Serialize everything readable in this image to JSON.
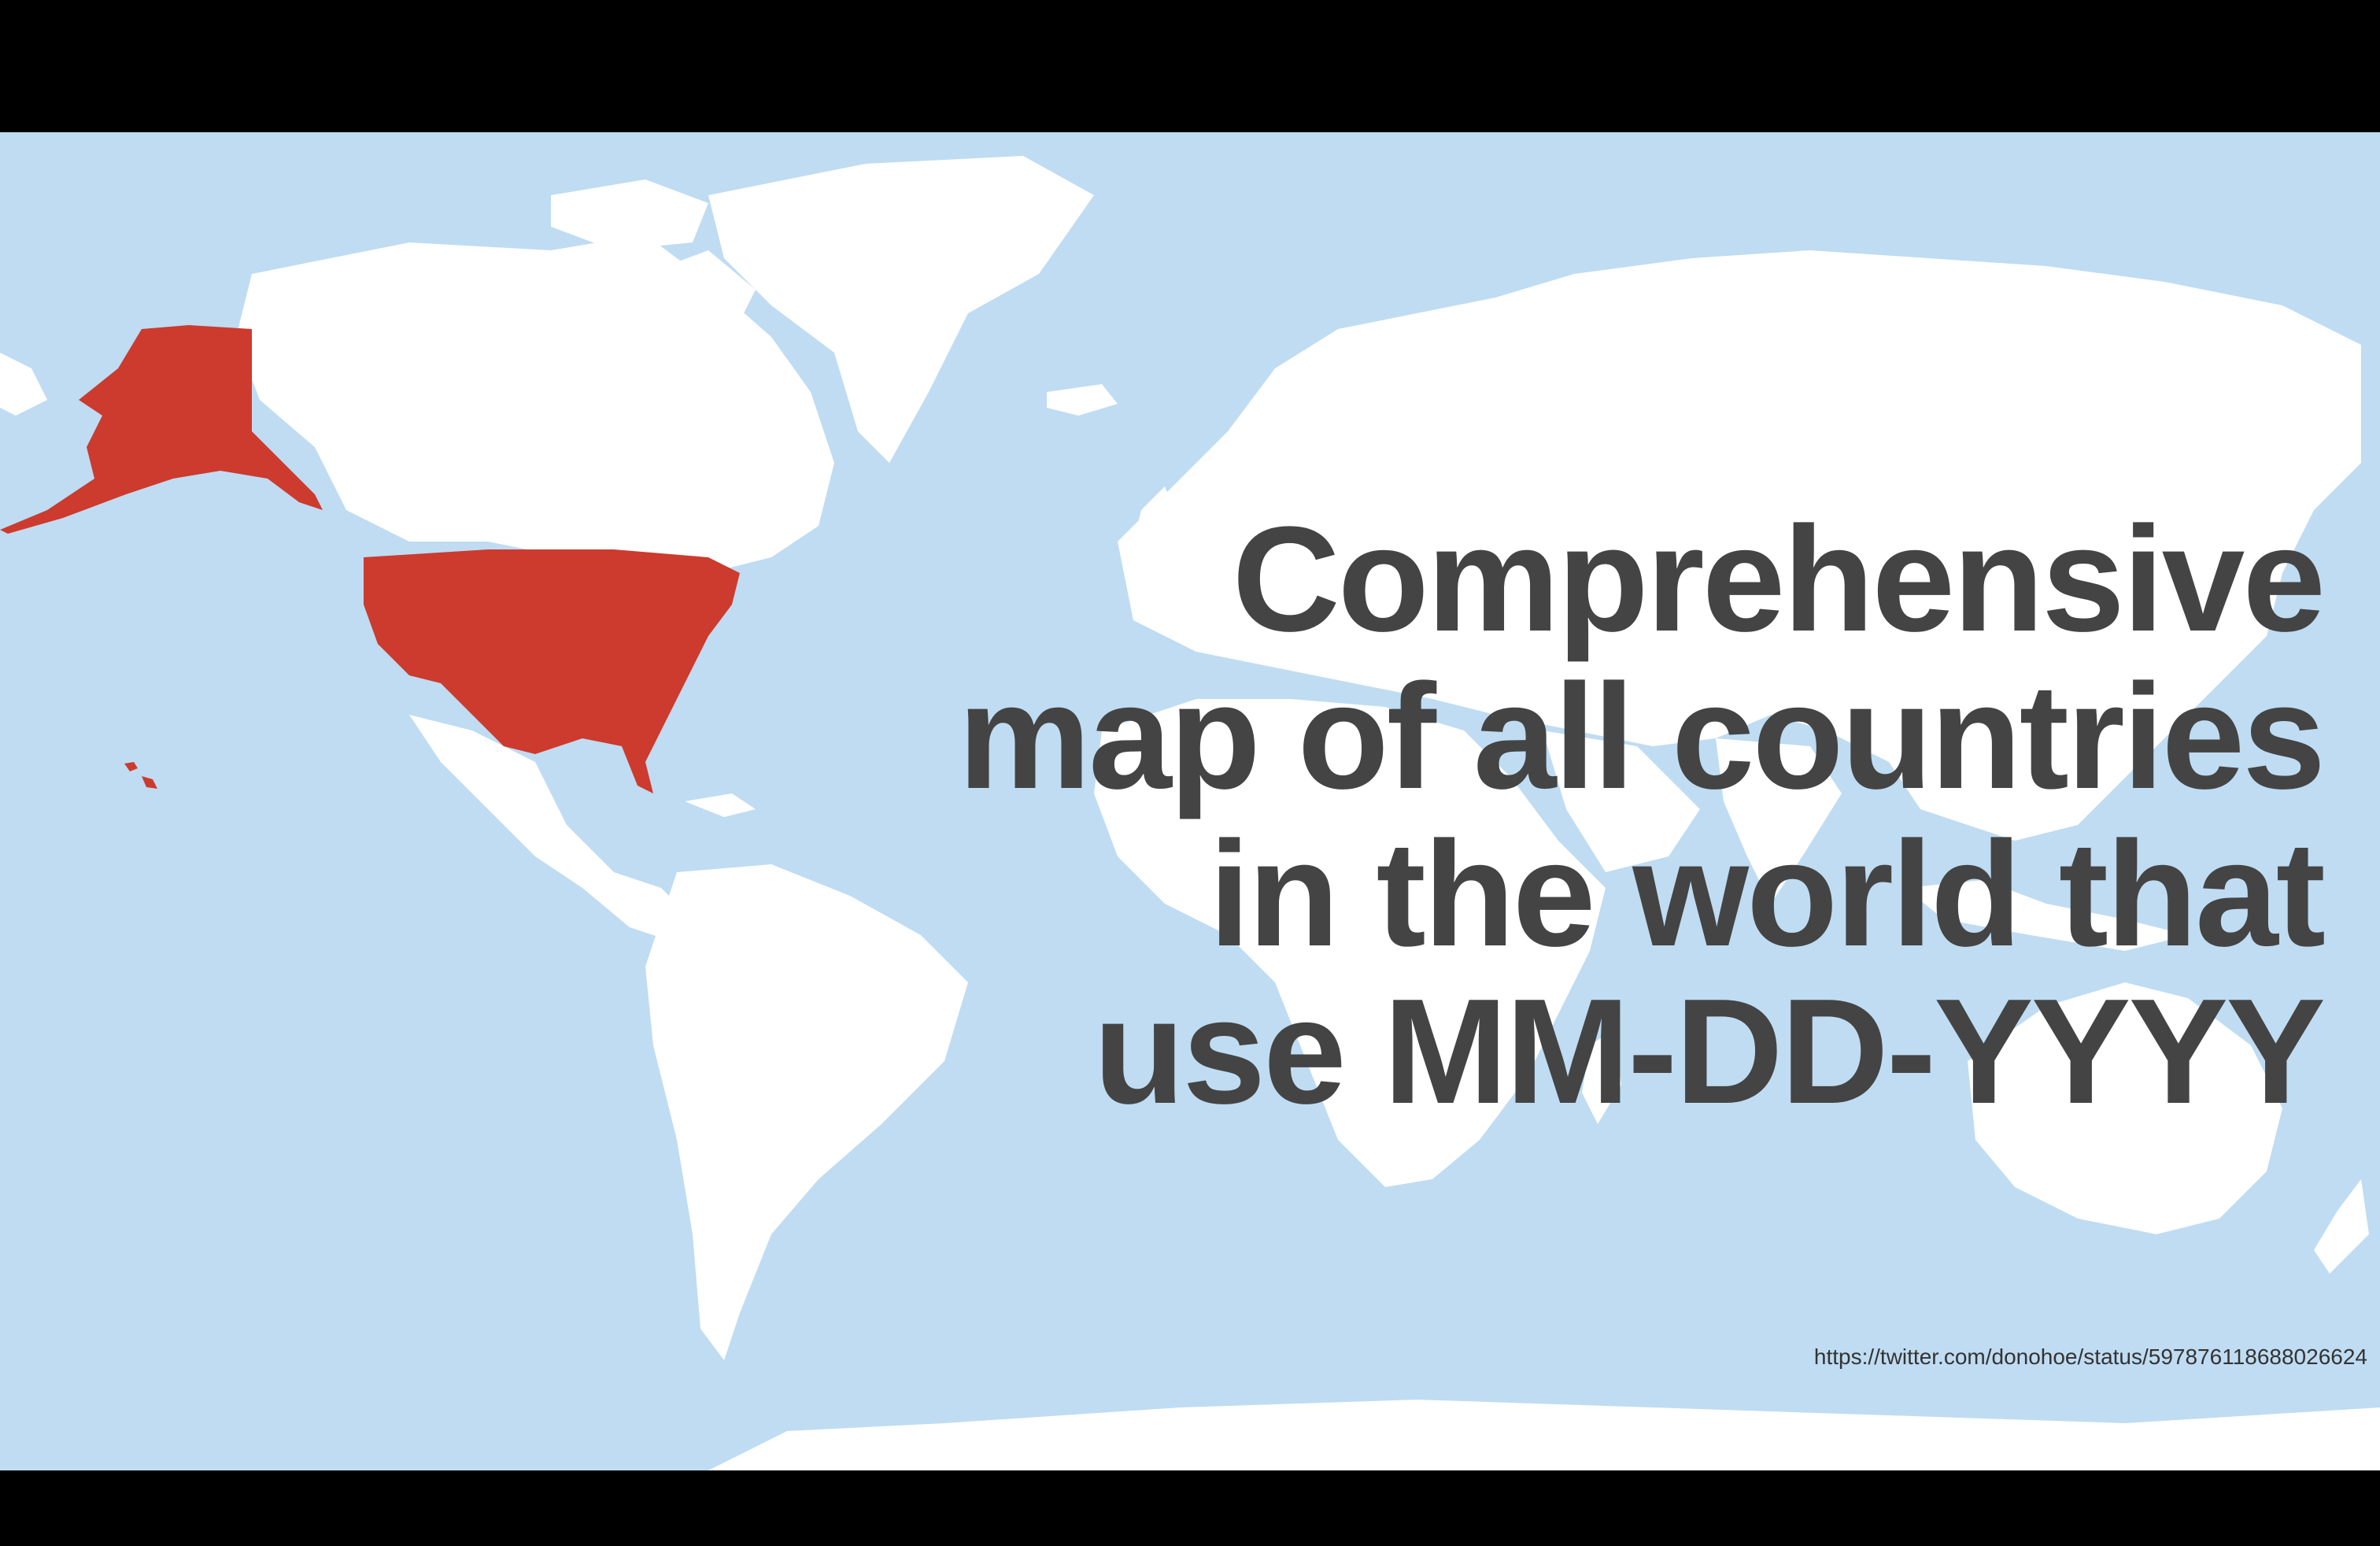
{
  "slide": {
    "headline_lines": [
      "Comprehensive",
      "map of all countries",
      "in the world that",
      "use MM-DD-YYYY"
    ],
    "source_url": "https://twitter.com/donohoe/status/597876118688026624"
  },
  "map": {
    "highlighted_country": "United States",
    "colors": {
      "ocean": "#bfdcf2",
      "land": "#ffffff",
      "highlight": "#cc3b2e",
      "text": "#444444"
    }
  }
}
